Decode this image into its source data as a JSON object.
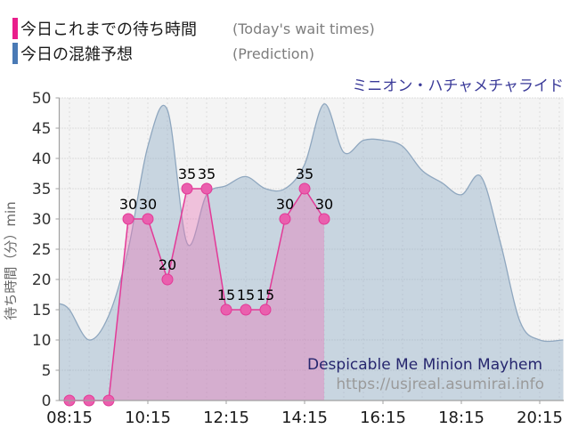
{
  "title": "ミニオン・ハチャメチャライド",
  "legend": {
    "items": [
      {
        "label": "今日これまでの待ち時間",
        "note": "(Today's wait times)",
        "color": "#e91e8c"
      },
      {
        "label": "今日の混雑予想",
        "note": "(Prediction)",
        "color": "#4a7ab5"
      }
    ]
  },
  "watermark": {
    "line1": "Despicable Me Minion Mayhem",
    "line2": "https://usjreal.asumirai.info",
    "color1": "#26266e",
    "color2": "#9a9a9a"
  },
  "chart_data": {
    "type": "area",
    "title": "ミニオン・ハチャメチャライド",
    "ylabel": "待ち時間（分）min",
    "ylim": [
      0,
      50
    ],
    "ytick_step": 5,
    "xticks": [
      "08:15",
      "10:15",
      "12:15",
      "14:15",
      "16:15",
      "18:15",
      "20:15"
    ],
    "grid": true,
    "legend_position": "top-left",
    "series": [
      {
        "name": "今日の混雑予想",
        "name_en": "Prediction",
        "style": "smooth-area",
        "line_color": "#8fa7bf",
        "fill_color": "rgba(146,176,199,0.45)",
        "points": [
          [
            "08:00",
            16
          ],
          [
            "08:15",
            15
          ],
          [
            "08:45",
            10
          ],
          [
            "09:15",
            14
          ],
          [
            "09:45",
            25
          ],
          [
            "10:15",
            42
          ],
          [
            "10:45",
            48
          ],
          [
            "11:15",
            26
          ],
          [
            "11:45",
            34
          ],
          [
            "12:15",
            35.5
          ],
          [
            "12:45",
            37
          ],
          [
            "13:15",
            35
          ],
          [
            "13:45",
            35
          ],
          [
            "14:15",
            39
          ],
          [
            "14:45",
            49
          ],
          [
            "15:15",
            41
          ],
          [
            "15:45",
            43
          ],
          [
            "16:15",
            43
          ],
          [
            "16:45",
            42
          ],
          [
            "17:15",
            38
          ],
          [
            "17:45",
            36
          ],
          [
            "18:15",
            34
          ],
          [
            "18:45",
            37
          ],
          [
            "19:15",
            26
          ],
          [
            "19:45",
            13
          ],
          [
            "20:15",
            10
          ],
          [
            "20:51",
            10
          ]
        ]
      },
      {
        "name": "今日これまでの待ち時間",
        "name_en": "Today's wait times",
        "style": "line-markers-labels",
        "line_color": "#e23a97",
        "fill_color": "rgba(232,121,183,0.42)",
        "marker_color": "#ea5fae",
        "label_color": "#000000",
        "points": [
          [
            "08:15",
            0
          ],
          [
            "08:45",
            0
          ],
          [
            "09:15",
            0
          ],
          [
            "09:45",
            30
          ],
          [
            "10:15",
            30
          ],
          [
            "10:45",
            20
          ],
          [
            "11:15",
            35
          ],
          [
            "11:45",
            35
          ],
          [
            "12:15",
            15
          ],
          [
            "12:45",
            15
          ],
          [
            "13:15",
            15
          ],
          [
            "13:45",
            30
          ],
          [
            "14:15",
            35
          ],
          [
            "14:45",
            30
          ]
        ]
      }
    ]
  }
}
